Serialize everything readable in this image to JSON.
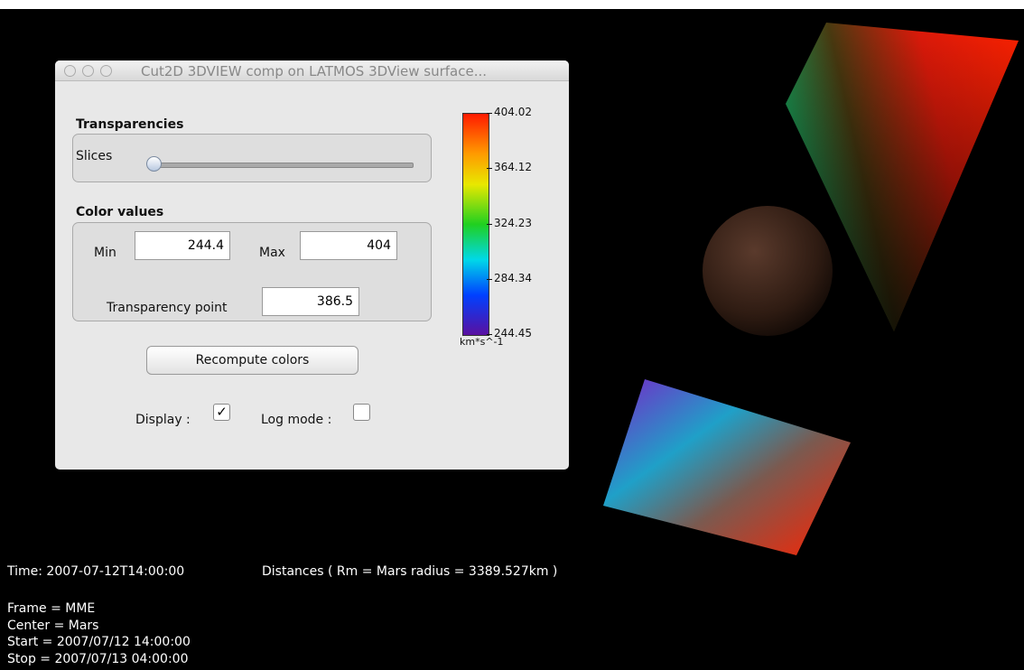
{
  "window": {
    "title": "Cut2D 3DVIEW comp on LATMOS 3DView surface..."
  },
  "transparencies": {
    "heading": "Transparencies",
    "slider_label": "Slices"
  },
  "color_values": {
    "heading": "Color values",
    "min_label": "Min",
    "min_value": "244.4",
    "max_label": "Max",
    "max_value": "404",
    "transparency_label": "Transparency point",
    "transparency_value": "386.5"
  },
  "button": "Recompute colors",
  "display": {
    "label": "Display :",
    "checked": true
  },
  "log_mode": {
    "label": "Log mode :",
    "checked": false
  },
  "colorbar": {
    "ticks": [
      "404.02",
      "364.12",
      "324.23",
      "284.34",
      "244.45"
    ],
    "unit": "km*s^-1"
  },
  "info": {
    "time": "Time: 2007-07-12T14:00:00",
    "distances": "Distances ( Rm = Mars radius = 3389.527km )",
    "lines": [
      "Frame = MME",
      "Center = Mars",
      "Start = 2007/07/12 14:00:00",
      "Stop = 2007/07/13 04:00:00"
    ]
  }
}
